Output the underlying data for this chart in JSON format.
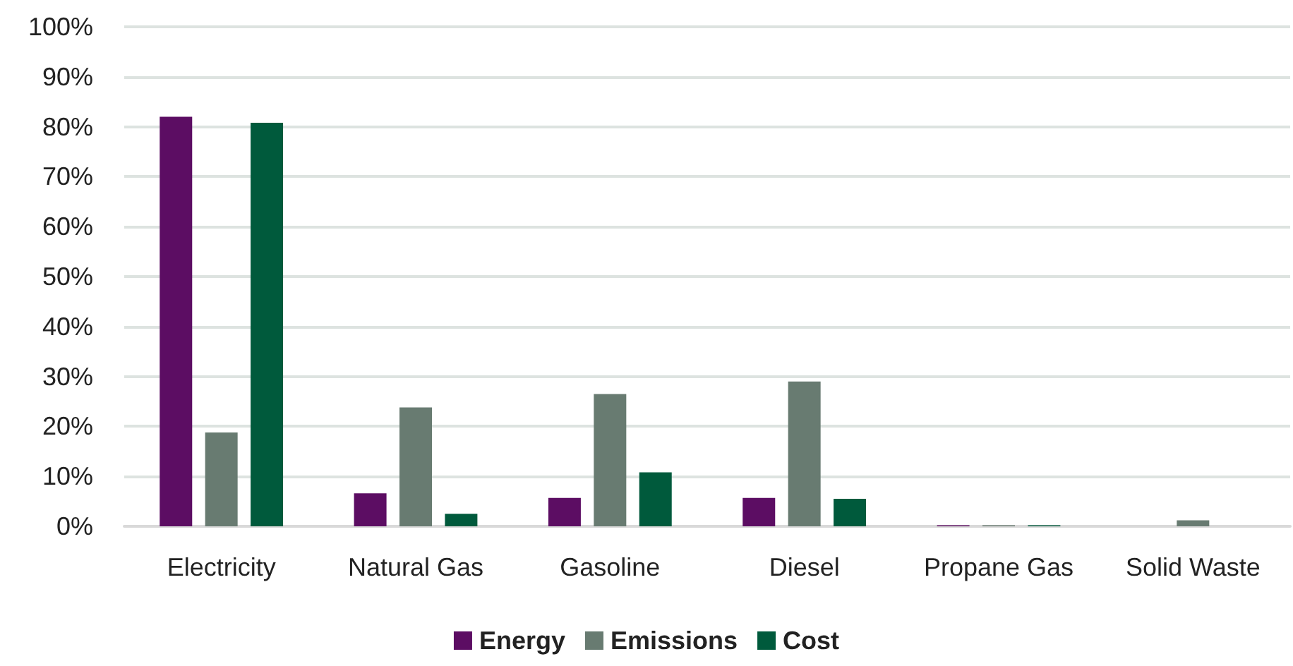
{
  "chart_data": {
    "type": "bar",
    "categories": [
      "Electricity",
      "Natural Gas",
      "Gasoline",
      "Diesel",
      "Propane Gas",
      "Solid Waste"
    ],
    "series": [
      {
        "name": "Energy",
        "color": "#5c0d63",
        "values": [
          82,
          6.6,
          5.7,
          5.7,
          0.2,
          0
        ]
      },
      {
        "name": "Emissions",
        "color": "#687b71",
        "values": [
          18.8,
          23.8,
          26.5,
          29,
          0.2,
          1.2
        ]
      },
      {
        "name": "Cost",
        "color": "#005a3c",
        "values": [
          80.8,
          2.5,
          10.8,
          5.5,
          0.2,
          0
        ]
      }
    ],
    "ylim": [
      0,
      100
    ],
    "yticks": [
      {
        "value": 0,
        "label": "0%"
      },
      {
        "value": 10,
        "label": "10%"
      },
      {
        "value": 20,
        "label": "20%"
      },
      {
        "value": 30,
        "label": "30%"
      },
      {
        "value": 40,
        "label": "40%"
      },
      {
        "value": 50,
        "label": "50%"
      },
      {
        "value": 60,
        "label": "60%"
      },
      {
        "value": 70,
        "label": "70%"
      },
      {
        "value": 80,
        "label": "80%"
      },
      {
        "value": 90,
        "label": "90%"
      },
      {
        "value": 100,
        "label": "100%"
      }
    ],
    "grid": "y",
    "legend": "bottom"
  }
}
